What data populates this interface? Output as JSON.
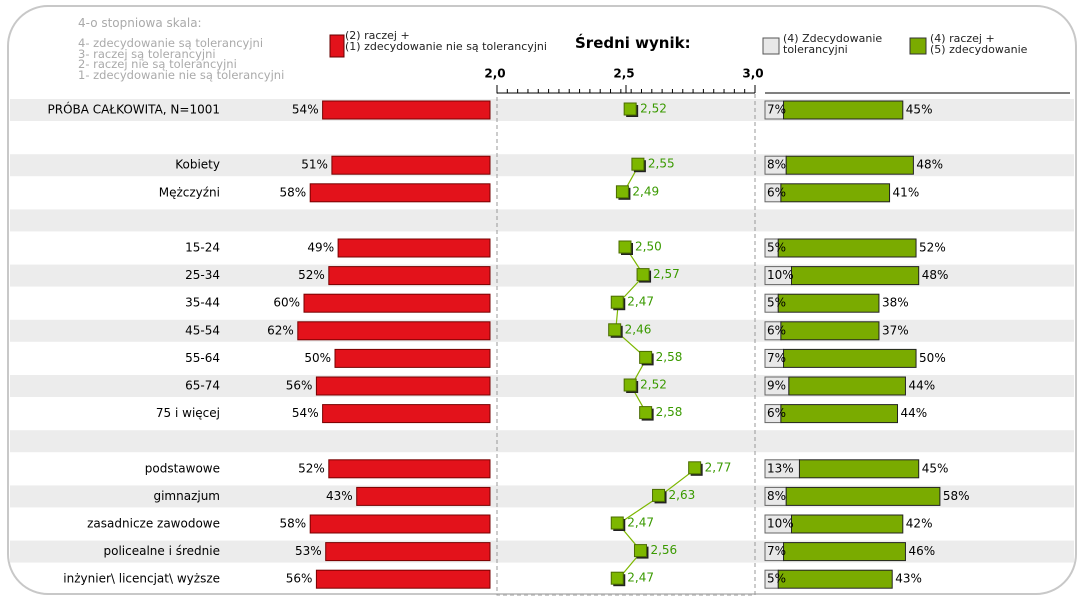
{
  "chart_data": {
    "type": "bar",
    "title": "Średni wynik:",
    "scale_note": [
      "4-o stopniowa skala:",
      "4- zdecydowanie są tolerancyjni",
      "3- raczej są tolerancyjni",
      "2- raczej nie są tolerancyjni",
      "1- zdecydowanie nie są tolerancyjni"
    ],
    "categories": [
      "PRÓBA CAŁKOWITA, N=1001",
      null,
      "Kobiety",
      "Mężczyźni",
      null,
      "15-24",
      "25-34",
      "35-44",
      "45-54",
      "55-64",
      "65-74",
      "75 i więcej",
      null,
      "podstawowe",
      "gimnazjum",
      "zasadnicze zawodowe",
      "policealne i średnie",
      "inżynier\\ licencjat\\ wyższe"
    ],
    "xlim": [
      2.0,
      3.0
    ],
    "xticks": [
      {
        "value": 2.0,
        "label": "2,0"
      },
      {
        "value": 2.5,
        "label": "2,5"
      },
      {
        "value": 3.0,
        "label": "3,0"
      }
    ],
    "series": [
      {
        "name": "(2) raczej +\n(1) zdecydowanie nie są tolerancyjni",
        "color": "#e3121b",
        "values": [
          54,
          null,
          51,
          58,
          null,
          49,
          52,
          60,
          62,
          50,
          56,
          54,
          null,
          52,
          43,
          58,
          53,
          56
        ],
        "value_labels": [
          "54%",
          null,
          "51%",
          "58%",
          null,
          "49%",
          "52%",
          "60%",
          "62%",
          "50%",
          "56%",
          "54%",
          null,
          "52%",
          "43%",
          "58%",
          "53%",
          "56%"
        ]
      },
      {
        "color": "#7db700",
        "values": [
          2.52,
          null,
          2.55,
          2.49,
          null,
          2.5,
          2.57,
          2.47,
          2.46,
          2.58,
          2.52,
          2.58,
          null,
          2.77,
          2.63,
          2.47,
          2.56,
          2.47
        ],
        "value_labels": [
          "2,52",
          null,
          "2,55",
          "2,49",
          null,
          "2,50",
          "2,57",
          "2,47",
          "2,46",
          "2,58",
          "2,52",
          "2,58",
          null,
          "2,77",
          "2,63",
          "2,47",
          "2,56",
          "2,47"
        ]
      },
      {
        "name": "(4) Zdecydowanie\ntolerancyjni",
        "color": "#e8e8e8",
        "values": [
          7,
          null,
          8,
          6,
          null,
          5,
          10,
          5,
          6,
          7,
          9,
          6,
          null,
          13,
          8,
          10,
          7,
          5
        ],
        "value_labels": [
          "7%",
          null,
          "8%",
          "6%",
          null,
          "5%",
          "10%",
          "5%",
          "6%",
          "7%",
          "9%",
          "6%",
          null,
          "13%",
          "8%",
          "10%",
          "7%",
          "5%"
        ]
      },
      {
        "name": "(4) raczej +\n(5) zdecydowanie",
        "color": "#7aab00",
        "values": [
          45,
          null,
          48,
          41,
          null,
          52,
          48,
          38,
          37,
          50,
          44,
          44,
          null,
          45,
          58,
          42,
          46,
          43
        ],
        "value_labels": [
          "45%",
          null,
          "48%",
          "41%",
          null,
          "52%",
          "48%",
          "38%",
          "37%",
          "50%",
          "44%",
          "44%",
          null,
          "45%",
          "58%",
          "42%",
          "46%",
          "43%"
        ]
      }
    ]
  }
}
